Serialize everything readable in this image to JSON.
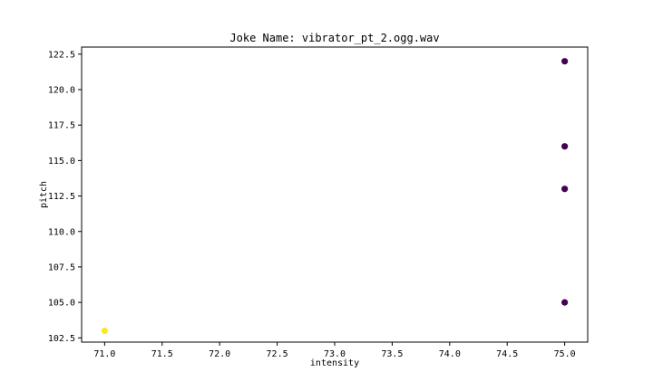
{
  "chart_data": {
    "type": "scatter",
    "title": "Joke Name: vibrator_pt_2.ogg.wav",
    "xlabel": "intensity",
    "ylabel": "pitch",
    "xlim": [
      70.8,
      75.2
    ],
    "ylim": [
      102.2,
      123.0
    ],
    "xticks": [
      71.0,
      71.5,
      72.0,
      72.5,
      73.0,
      73.5,
      74.0,
      74.5,
      75.0
    ],
    "yticks": [
      102.5,
      105.0,
      107.5,
      110.0,
      112.5,
      115.0,
      117.5,
      120.0,
      122.5
    ],
    "xtick_labels": [
      "71.0",
      "71.5",
      "72.0",
      "72.5",
      "73.0",
      "73.5",
      "74.0",
      "74.5",
      "75.0"
    ],
    "ytick_labels": [
      "102.5",
      "105.0",
      "107.5",
      "110.0",
      "112.5",
      "115.0",
      "117.5",
      "120.0",
      "122.5"
    ],
    "grid": false,
    "points": [
      {
        "x": 75.0,
        "y": 122.0,
        "color": "#440154"
      },
      {
        "x": 75.0,
        "y": 116.0,
        "color": "#440154"
      },
      {
        "x": 75.0,
        "y": 113.0,
        "color": "#440154"
      },
      {
        "x": 75.0,
        "y": 105.0,
        "color": "#440154"
      },
      {
        "x": 71.0,
        "y": 103.0,
        "color": "#fde725"
      }
    ]
  }
}
